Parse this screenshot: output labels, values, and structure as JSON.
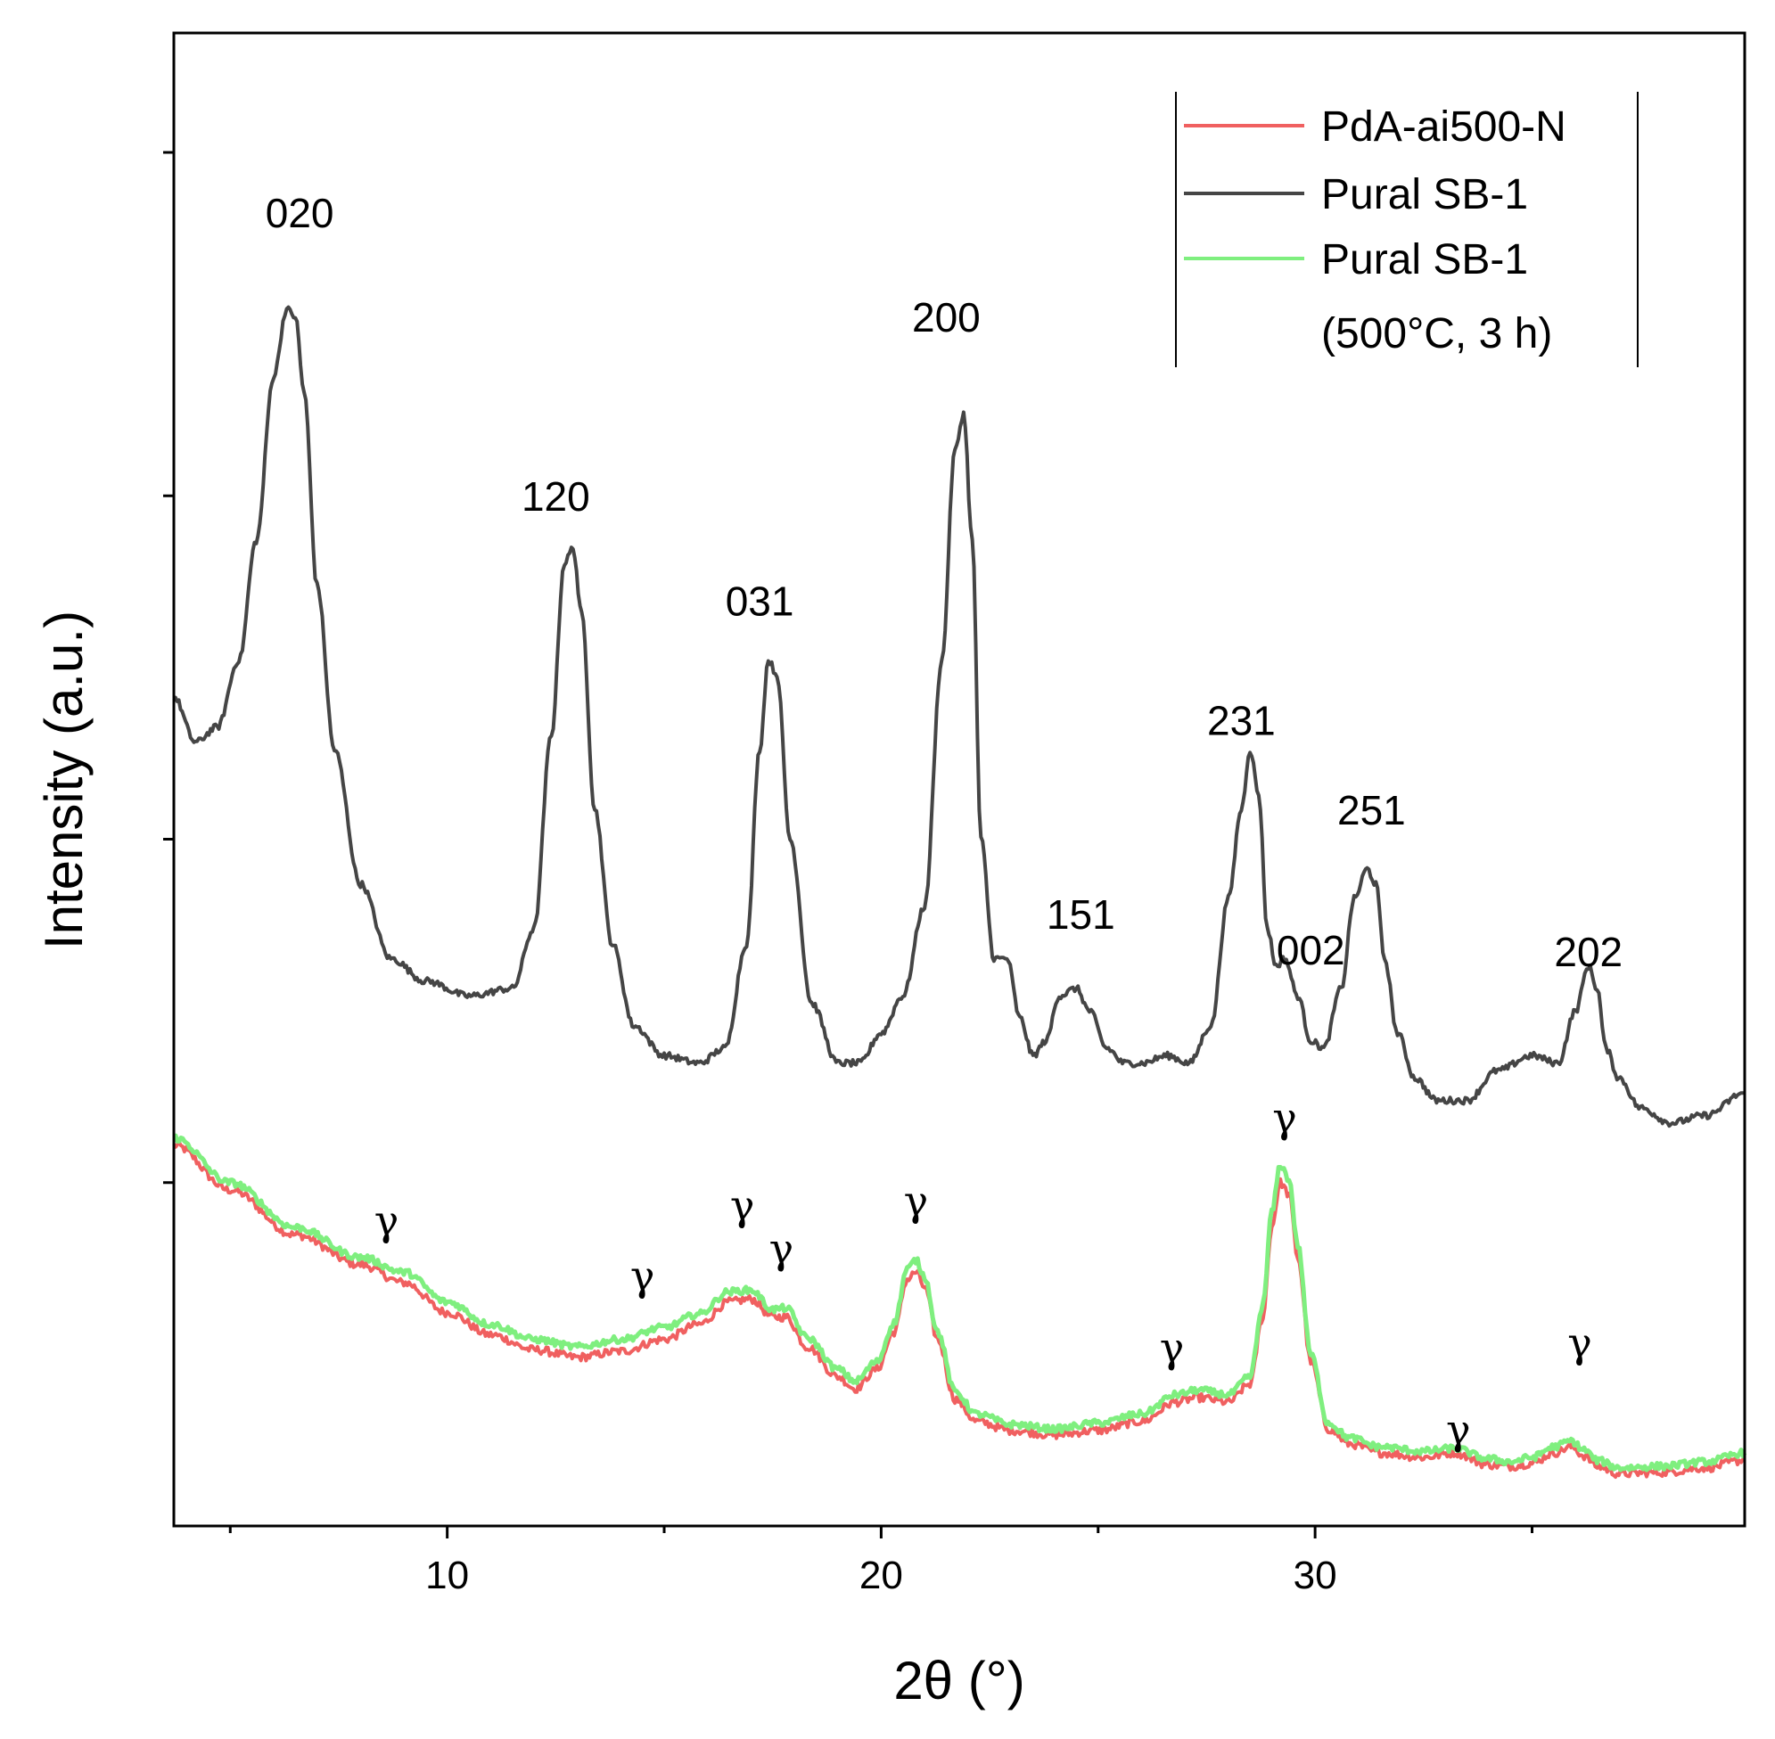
{
  "chart_data": {
    "type": "line",
    "title": "",
    "xlabel": "2θ (°)",
    "ylabel": "Intensity (a.u.)",
    "xlim": [
      3.7,
      39.9
    ],
    "ylim": [
      0,
      100
    ],
    "x_ticks": [
      10,
      20,
      30
    ],
    "x_minor_ticks": [
      5,
      15,
      25,
      35
    ],
    "y_tick_values": [
      23,
      46,
      69,
      92
    ],
    "legend": {
      "placement": "top-right",
      "entries": [
        "PdA-ai500-N",
        "Pural SB-1",
        "Pural SB-1",
        "(500°C, 3 h)"
      ]
    },
    "series": [
      {
        "name": "PdA-ai500-N",
        "color": "#f06060",
        "x": [
          3.7,
          5,
          6.5,
          8,
          9,
          10,
          11,
          12,
          13,
          14,
          15,
          15.8,
          16.5,
          17,
          17.5,
          17.8,
          18.3,
          19,
          19.4,
          19.9,
          20.3,
          20.6,
          20.8,
          21,
          21.3,
          21.7,
          22.2,
          23,
          24,
          25,
          26,
          26.8,
          27.3,
          28,
          28.5,
          28.8,
          29,
          29.2,
          29.4,
          29.6,
          29.9,
          30.3,
          30.8,
          31.5,
          32.5,
          33.2,
          34,
          34.5,
          35,
          35.5,
          35.9,
          36.2,
          36.5,
          37,
          38,
          39,
          39.9
        ],
        "y": [
          25.5,
          22.5,
          19.5,
          17.5,
          16.3,
          14.3,
          12.8,
          11.8,
          11.3,
          11.7,
          12.5,
          13.5,
          15.0,
          15.2,
          14.0,
          14.0,
          12.0,
          10.0,
          9.2,
          10.5,
          13.0,
          16.5,
          17.0,
          16.0,
          12.5,
          8.5,
          7.0,
          6.4,
          6.1,
          6.4,
          7.0,
          8.3,
          8.6,
          8.3,
          9.5,
          14.0,
          20.0,
          23.0,
          22.2,
          18.0,
          11.0,
          6.5,
          5.5,
          4.9,
          4.6,
          4.9,
          4.1,
          4.0,
          4.2,
          4.9,
          5.3,
          4.7,
          4.0,
          3.5,
          3.6,
          3.9,
          4.4
        ]
      },
      {
        "name": "Pural SB-1",
        "color": "#454545",
        "x": [
          3.7,
          4.2,
          4.7,
          5.2,
          5.6,
          6.0,
          6.3,
          6.5,
          6.7,
          7.0,
          7.4,
          8.0,
          8.7,
          9.5,
          10.5,
          11.5,
          12.0,
          12.4,
          12.7,
          12.9,
          13.1,
          13.4,
          13.8,
          14.3,
          15.0,
          15.8,
          16.4,
          16.9,
          17.2,
          17.4,
          17.6,
          17.9,
          18.4,
          19.0,
          19.5,
          20.0,
          20.5,
          21.0,
          21.4,
          21.7,
          21.9,
          22.1,
          22.3,
          22.6,
          22.9,
          23.2,
          23.5,
          23.8,
          24.1,
          24.5,
          24.8,
          25.2,
          25.6,
          26.0,
          26.6,
          27.1,
          27.6,
          28.0,
          28.3,
          28.5,
          28.7,
          28.9,
          29.1,
          29.3,
          29.6,
          29.9,
          30.2,
          30.6,
          30.9,
          31.2,
          31.4,
          31.6,
          31.9,
          32.3,
          32.8,
          33.5,
          34.2,
          35.0,
          35.6,
          36.0,
          36.3,
          36.5,
          36.7,
          37.0,
          37.5,
          38.2,
          39.0,
          39.9
        ],
        "y": [
          55.5,
          52.5,
          53.5,
          58.0,
          66.0,
          77.0,
          81.5,
          81.0,
          76.0,
          63.0,
          52.0,
          43.0,
          38.0,
          36.5,
          35.5,
          36.0,
          40.0,
          53.0,
          64.5,
          65.5,
          61.0,
          48.0,
          39.0,
          33.5,
          31.5,
          31.0,
          32.0,
          39.0,
          52.0,
          58.0,
          57.0,
          46.0,
          35.0,
          31.0,
          31.0,
          33.0,
          35.5,
          41.5,
          58.0,
          72.0,
          74.5,
          66.0,
          46.0,
          38.0,
          38.0,
          34.0,
          31.5,
          32.5,
          35.5,
          36.0,
          34.5,
          32.0,
          31.0,
          31.0,
          31.5,
          31.0,
          33.5,
          42.0,
          48.0,
          52.0,
          49.0,
          40.0,
          37.5,
          38.0,
          35.5,
          32.5,
          32.0,
          36.0,
          42.0,
          44.0,
          43.0,
          38.0,
          33.0,
          30.0,
          28.5,
          28.5,
          30.5,
          31.5,
          31.0,
          34.5,
          37.5,
          36.0,
          32.0,
          30.0,
          28.0,
          27.0,
          27.5,
          29.0
        ]
      },
      {
        "name": "Pural SB-1 (500°C, 3 h)",
        "color": "#7fef7f",
        "x": [
          3.7,
          5,
          6.5,
          8,
          9,
          10,
          11,
          12,
          13,
          14,
          15,
          15.8,
          16.5,
          17,
          17.5,
          17.8,
          18.3,
          19,
          19.4,
          19.9,
          20.3,
          20.6,
          20.8,
          21,
          21.3,
          21.7,
          22.2,
          23,
          24,
          25,
          26,
          26.8,
          27.3,
          28,
          28.5,
          28.8,
          29,
          29.2,
          29.4,
          29.6,
          29.9,
          30.3,
          30.8,
          31.5,
          32.5,
          33.2,
          34,
          34.5,
          35,
          35.5,
          35.9,
          36.2,
          36.5,
          37,
          38,
          39,
          39.9
        ],
        "y": [
          26.0,
          23.0,
          20.0,
          18.0,
          17.0,
          15.0,
          13.5,
          12.5,
          12.0,
          12.5,
          13.3,
          14.2,
          15.7,
          15.8,
          14.5,
          14.6,
          12.6,
          10.5,
          9.7,
          11.0,
          13.6,
          17.2,
          17.8,
          16.7,
          13.0,
          9.0,
          7.5,
          6.8,
          6.5,
          6.9,
          7.5,
          8.8,
          9.1,
          8.8,
          10.0,
          14.8,
          21.0,
          24.2,
          23.2,
          18.8,
          11.5,
          6.9,
          5.9,
          5.3,
          5.0,
          5.2,
          4.5,
          4.3,
          4.6,
          5.3,
          5.7,
          5.1,
          4.4,
          3.9,
          4.0,
          4.3,
          4.9
        ]
      }
    ],
    "peak_labels": [
      {
        "text": "020",
        "x": 6.6,
        "y": 87
      },
      {
        "text": "120",
        "x": 12.5,
        "y": 68
      },
      {
        "text": "031",
        "x": 17.2,
        "y": 61
      },
      {
        "text": "200",
        "x": 21.5,
        "y": 80
      },
      {
        "text": "151",
        "x": 24.6,
        "y": 40
      },
      {
        "text": "231",
        "x": 28.3,
        "y": 53
      },
      {
        "text": "002",
        "x": 29.9,
        "y": 37.6
      },
      {
        "text": "251",
        "x": 31.3,
        "y": 47
      },
      {
        "text": "202",
        "x": 36.3,
        "y": 37.5
      }
    ],
    "gamma_labels": [
      {
        "text": "γ",
        "x": 8.6,
        "y": 19.5
      },
      {
        "text": "γ",
        "x": 14.5,
        "y": 15.8
      },
      {
        "text": "γ",
        "x": 16.8,
        "y": 20.5
      },
      {
        "text": "γ",
        "x": 17.7,
        "y": 17.6
      },
      {
        "text": "γ",
        "x": 20.8,
        "y": 20.8
      },
      {
        "text": "γ",
        "x": 26.7,
        "y": 11.0
      },
      {
        "text": "γ",
        "x": 29.3,
        "y": 26.4
      },
      {
        "text": "γ",
        "x": 33.3,
        "y": 5.5
      },
      {
        "text": "γ",
        "x": 36.1,
        "y": 11.3
      }
    ]
  }
}
